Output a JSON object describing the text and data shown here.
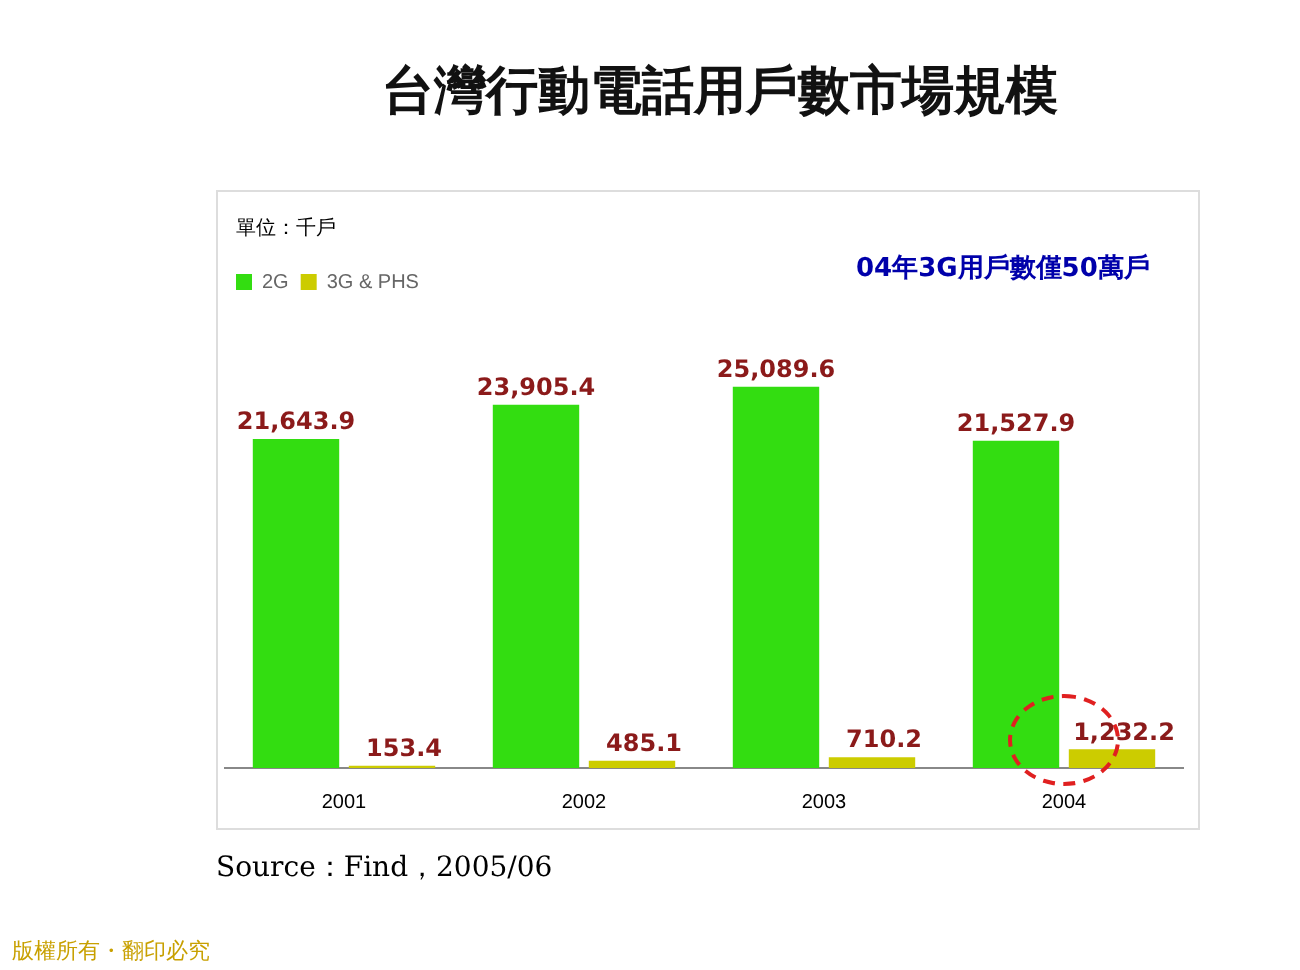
{
  "chart_data": {
    "type": "bar",
    "title": "台灣行動電話用戶數市場規模",
    "categories": [
      "2001",
      "2002",
      "2003",
      "2004"
    ],
    "series": [
      {
        "name": "2G",
        "color": "#33dd11",
        "values": [
          21643.9,
          23905.4,
          25089.6,
          21527.9
        ],
        "value_labels": [
          "21,643.9",
          "23,905.4",
          "25,089.6",
          "21,527.9"
        ]
      },
      {
        "name": "3G & PHS",
        "color": "#cccc00",
        "values": [
          153.4,
          485.1,
          710.2,
          1232.2
        ],
        "value_labels": [
          "153.4",
          "485.1",
          "710.2",
          "1,232.2"
        ]
      }
    ],
    "legend": "top left",
    "grid": false,
    "annotations": [
      "單位：千戶",
      "04年3G用戶數僅50萬戶",
      "Source：Find，2005/06",
      "版權所有・翻印必究"
    ]
  }
}
